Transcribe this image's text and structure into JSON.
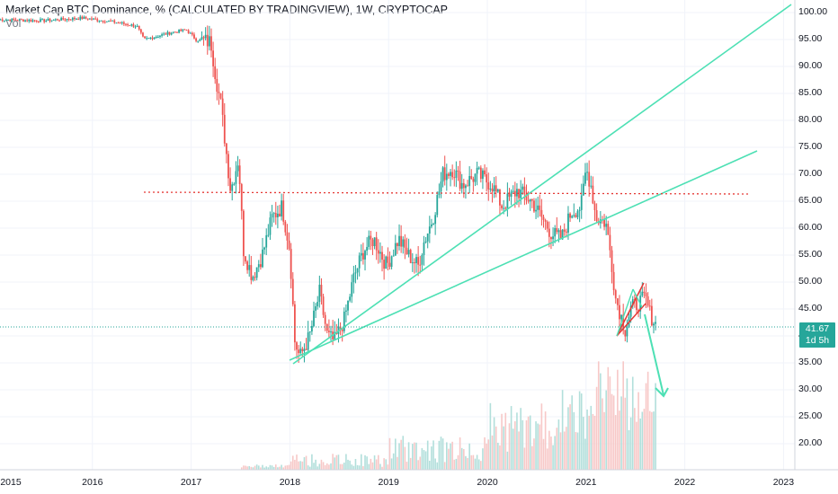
{
  "title": "Market Cap BTC Dominance, % (CALCULATED BY TRADINGVIEW), 1W, CRYPTOCAP",
  "vol_label": "Vol",
  "last_price": "41.67",
  "countdown": "1d 5h",
  "colors": {
    "up": "#26a69a",
    "down": "#ef5350",
    "trendline": "#4de0b4",
    "level_line": "#e53935",
    "wedge_line": "#e53935",
    "last_price_line": "#26a69a",
    "arrow": "#4de0b4",
    "grid": "#f0f3fa",
    "volume_up": "#b2dfdb",
    "volume_down": "#f7c8c7"
  },
  "chart_data": {
    "type": "candlestick",
    "title": "Market Cap BTC Dominance, % (CALCULATED BY TRADINGVIEW), 1W, CRYPTOCAP",
    "xlabel": "",
    "ylabel": "",
    "x_ticks": [
      "2015",
      "2016",
      "2017",
      "2018",
      "2019",
      "2020",
      "2021",
      "2022",
      "2023"
    ],
    "y_ticks": [
      "100.00",
      "95.00",
      "90.00",
      "85.00",
      "80.00",
      "75.00",
      "70.00",
      "65.00",
      "60.00",
      "55.00",
      "50.00",
      "45.00",
      "40.00",
      "35.00",
      "30.00",
      "25.00",
      "20.00"
    ],
    "ylim": [
      15.5,
      101.5
    ],
    "xlim": [
      2015.0,
      2023.1
    ],
    "grid": true,
    "last_value": 41.67,
    "price_path": [
      [
        2015.05,
        98.7
      ],
      [
        2015.5,
        98.5
      ],
      [
        2015.9,
        99.0
      ],
      [
        2016.2,
        98.3
      ],
      [
        2016.45,
        97.5
      ],
      [
        2016.52,
        95.0
      ],
      [
        2016.8,
        96.3
      ],
      [
        2016.95,
        96.8
      ],
      [
        2017.05,
        95.0
      ],
      [
        2017.2,
        94.5
      ],
      [
        2017.25,
        88.0
      ],
      [
        2017.3,
        83.0
      ],
      [
        2017.35,
        75.0
      ],
      [
        2017.4,
        67.0
      ],
      [
        2017.48,
        73.0
      ],
      [
        2017.53,
        56.0
      ],
      [
        2017.62,
        51.0
      ],
      [
        2017.72,
        55.0
      ],
      [
        2017.82,
        62.0
      ],
      [
        2017.92,
        64.0
      ],
      [
        2018.0,
        56.0
      ],
      [
        2018.05,
        39.0
      ],
      [
        2018.1,
        36.0
      ],
      [
        2018.2,
        40.0
      ],
      [
        2018.3,
        48.0
      ],
      [
        2018.38,
        40.0
      ],
      [
        2018.45,
        39.0
      ],
      [
        2018.55,
        43.0
      ],
      [
        2018.65,
        51.0
      ],
      [
        2018.75,
        56.0
      ],
      [
        2018.85,
        58.0
      ],
      [
        2018.98,
        53.0
      ],
      [
        2019.1,
        58.0
      ],
      [
        2019.2,
        55.0
      ],
      [
        2019.3,
        53.0
      ],
      [
        2019.35,
        57.0
      ],
      [
        2019.45,
        62.0
      ],
      [
        2019.55,
        70.0
      ],
      [
        2019.65,
        71.0
      ],
      [
        2019.75,
        68.0
      ],
      [
        2019.9,
        70.0
      ],
      [
        2020.05,
        68.0
      ],
      [
        2020.15,
        64.0
      ],
      [
        2020.3,
        67.0
      ],
      [
        2020.45,
        65.0
      ],
      [
        2020.55,
        62.0
      ],
      [
        2020.65,
        59.0
      ],
      [
        2020.75,
        58.0
      ],
      [
        2020.85,
        63.0
      ],
      [
        2020.95,
        64.0
      ],
      [
        2021.0,
        71.0
      ],
      [
        2021.05,
        68.0
      ],
      [
        2021.1,
        62.0
      ],
      [
        2021.2,
        61.0
      ],
      [
        2021.25,
        55.0
      ],
      [
        2021.3,
        47.0
      ],
      [
        2021.35,
        44.0
      ],
      [
        2021.4,
        41.0
      ],
      [
        2021.45,
        45.0
      ],
      [
        2021.52,
        46.0
      ],
      [
        2021.6,
        47.0
      ],
      [
        2021.65,
        44.0
      ],
      [
        2021.72,
        41.67
      ]
    ],
    "volume_note": "volume histogram at bottom, growing from 2017 to a peak in 2021"
  }
}
